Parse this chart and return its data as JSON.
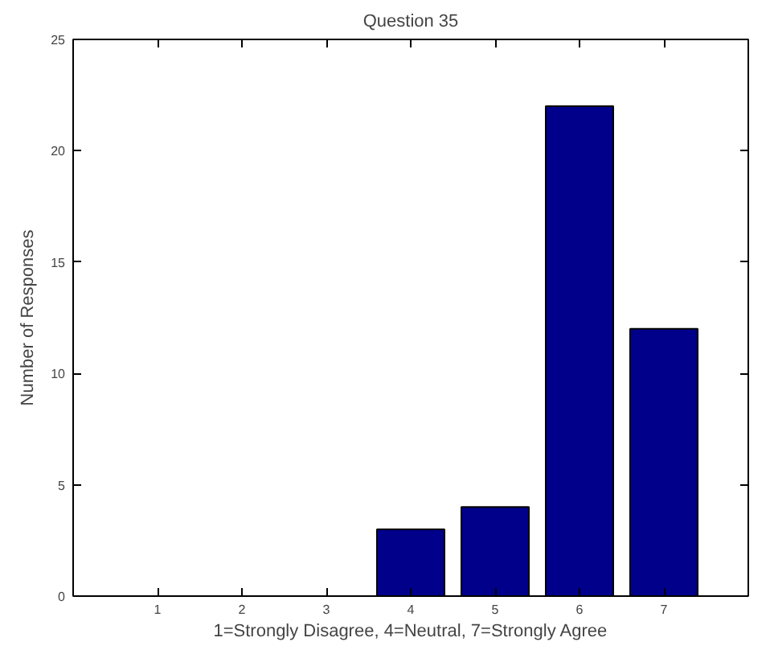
{
  "chart_data": {
    "type": "bar",
    "title": "Question 35",
    "xlabel": "1=Strongly Disagree, 4=Neutral, 7=Strongly Agree",
    "ylabel": "Number of Responses",
    "x": [
      1,
      2,
      3,
      4,
      5,
      6,
      7
    ],
    "values": [
      0,
      0,
      0,
      3,
      4,
      22,
      12
    ],
    "color": "#00008b",
    "xlim": [
      0,
      8
    ],
    "xticks": [
      1,
      2,
      3,
      4,
      5,
      6,
      7
    ],
    "ylim": [
      0,
      25
    ],
    "yticks": [
      0,
      5,
      10,
      15,
      20,
      25
    ],
    "grid": false
  }
}
